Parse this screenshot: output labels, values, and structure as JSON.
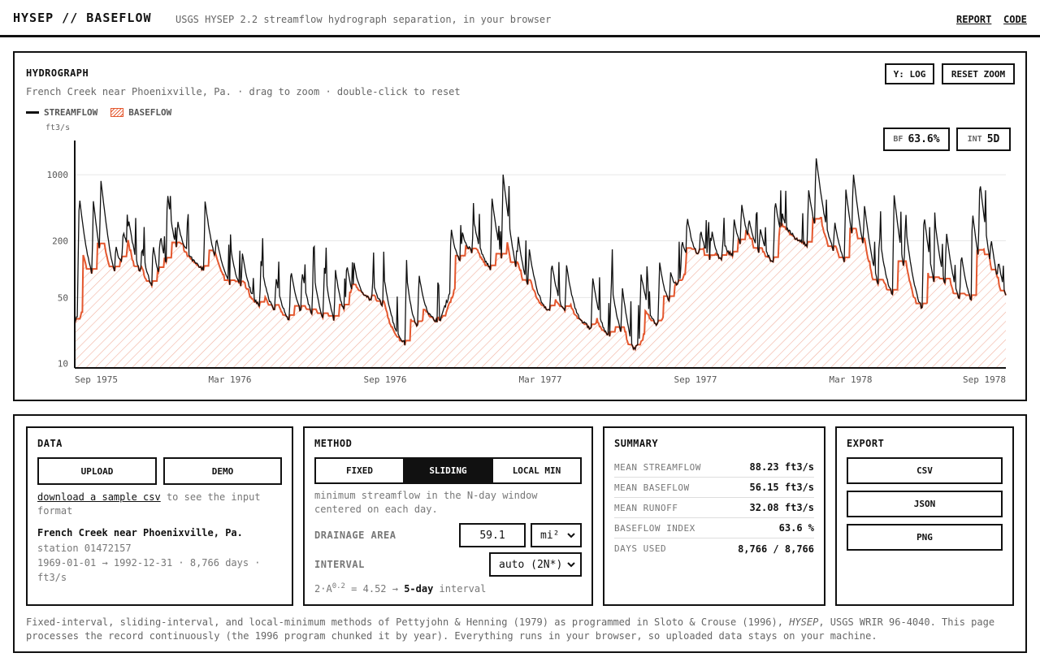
{
  "header": {
    "brand": "HYSEP // BASEFLOW",
    "tagline": "USGS HYSEP 2.2 streamflow hydrograph separation, in your browser",
    "nav": {
      "report": "REPORT",
      "code": "CODE"
    }
  },
  "chart_panel": {
    "title": "HYDROGRAPH",
    "subtitle": "French Creek near Phoenixville, Pa. · drag to zoom · double-click to reset",
    "ylog_button": "Y: LOG",
    "reset_button": "RESET ZOOM",
    "stat_bf": {
      "label": "BF",
      "value": "63.6%"
    },
    "stat_int": {
      "label": "INT",
      "value": "5D"
    }
  },
  "chart_data": {
    "type": "line",
    "series": [
      {
        "name": "STREAMFLOW",
        "color": "#111111"
      },
      {
        "name": "BASEFLOW",
        "color": "#e4572e",
        "fill": "hatched"
      }
    ],
    "ylabel": "ft3/s",
    "yscale": "log",
    "ylim": [
      9,
      2300
    ],
    "yticks": [
      10,
      50,
      200,
      1000
    ],
    "xticks": [
      "Sep 1975",
      "Mar 1976",
      "Sep 1976",
      "Mar 1977",
      "Sep 1977",
      "Mar 1978",
      "Sep 1978"
    ],
    "xrange": [
      "1975-09-01",
      "1978-09-01"
    ],
    "streamflow_anchors": [
      [
        0,
        28
      ],
      [
        0.02,
        60
      ],
      [
        0.03,
        40
      ],
      [
        0.05,
        50
      ],
      [
        0.07,
        120
      ],
      [
        0.09,
        70
      ],
      [
        0.11,
        50
      ],
      [
        0.13,
        80
      ],
      [
        0.15,
        130
      ],
      [
        0.17,
        100
      ],
      [
        0.19,
        85
      ],
      [
        0.21,
        62
      ],
      [
        0.23,
        48
      ],
      [
        0.25,
        38
      ],
      [
        0.27,
        32
      ],
      [
        0.29,
        26
      ],
      [
        0.31,
        29
      ],
      [
        0.33,
        22
      ],
      [
        0.35,
        19
      ],
      [
        0.37,
        32
      ],
      [
        0.39,
        48
      ],
      [
        0.41,
        41
      ],
      [
        0.43,
        20
      ],
      [
        0.45,
        14
      ],
      [
        0.47,
        26
      ],
      [
        0.49,
        28
      ],
      [
        0.51,
        78
      ],
      [
        0.53,
        140
      ],
      [
        0.55,
        110
      ],
      [
        0.57,
        80
      ],
      [
        0.59,
        55
      ],
      [
        0.61,
        46
      ],
      [
        0.63,
        37
      ],
      [
        0.65,
        33
      ],
      [
        0.67,
        28
      ],
      [
        0.69,
        24
      ],
      [
        0.71,
        19
      ],
      [
        0.73,
        16
      ],
      [
        0.74,
        12
      ],
      [
        0.75,
        10
      ],
      [
        0.765,
        26
      ],
      [
        0.78,
        24
      ],
      [
        0.8,
        38
      ],
      [
        0.82,
        100
      ],
      [
        0.84,
        130
      ],
      [
        0.86,
        95
      ],
      [
        0.88,
        125
      ],
      [
        0.9,
        140
      ],
      [
        0.92,
        130
      ],
      [
        0.94,
        105
      ],
      [
        0.96,
        210
      ],
      [
        0.98,
        185
      ],
      [
        1.0,
        165
      ],
      [
        1.02,
        130
      ],
      [
        1.04,
        85
      ],
      [
        1.06,
        72
      ],
      [
        1.08,
        50
      ],
      [
        1.1,
        44
      ],
      [
        1.12,
        38
      ],
      [
        1.14,
        32
      ],
      [
        1.16,
        40
      ],
      [
        1.18,
        38
      ],
      [
        1.2,
        35
      ],
      [
        1.22,
        36
      ],
      [
        1.25,
        38
      ]
    ],
    "storm_peaks": [
      [
        0.006,
        600
      ],
      [
        0.025,
        500
      ],
      [
        0.035,
        800
      ],
      [
        0.055,
        150
      ],
      [
        0.065,
        240
      ],
      [
        0.072,
        300
      ],
      [
        0.09,
        160
      ],
      [
        0.105,
        180
      ],
      [
        0.115,
        210
      ],
      [
        0.125,
        560
      ],
      [
        0.138,
        280
      ],
      [
        0.15,
        120
      ],
      [
        0.175,
        520
      ],
      [
        0.19,
        190
      ],
      [
        0.21,
        150
      ],
      [
        0.225,
        140
      ],
      [
        0.25,
        120
      ],
      [
        0.27,
        80
      ],
      [
        0.29,
        100
      ],
      [
        0.305,
        90
      ],
      [
        0.32,
        95
      ],
      [
        0.335,
        100
      ],
      [
        0.35,
        90
      ],
      [
        0.365,
        110
      ],
      [
        0.375,
        100
      ],
      [
        0.4,
        70
      ],
      [
        0.415,
        80
      ],
      [
        0.445,
        90
      ],
      [
        0.462,
        85
      ],
      [
        0.505,
        280
      ],
      [
        0.52,
        240
      ],
      [
        0.535,
        340
      ],
      [
        0.56,
        570
      ],
      [
        0.575,
        960
      ],
      [
        0.595,
        200
      ],
      [
        0.61,
        150
      ],
      [
        0.64,
        120
      ],
      [
        0.66,
        110
      ],
      [
        0.695,
        85
      ],
      [
        0.72,
        75
      ],
      [
        0.735,
        60
      ],
      [
        0.76,
        90
      ],
      [
        0.785,
        120
      ],
      [
        0.8,
        85
      ],
      [
        0.815,
        200
      ],
      [
        0.822,
        330
      ],
      [
        0.84,
        250
      ],
      [
        0.855,
        260
      ],
      [
        0.87,
        200
      ],
      [
        0.885,
        330
      ],
      [
        0.895,
        460
      ],
      [
        0.905,
        280
      ],
      [
        0.92,
        260
      ],
      [
        0.94,
        550
      ],
      [
        0.95,
        300
      ],
      [
        0.965,
        150
      ],
      [
        0.985,
        700
      ],
      [
        0.995,
        1500
      ],
      [
        1.02,
        300
      ],
      [
        1.035,
        700
      ],
      [
        1.045,
        950
      ],
      [
        1.06,
        400
      ],
      [
        1.08,
        220
      ],
      [
        1.1,
        600
      ],
      [
        1.115,
        250
      ],
      [
        1.14,
        380
      ],
      [
        1.155,
        280
      ],
      [
        1.17,
        230
      ],
      [
        1.19,
        140
      ],
      [
        1.205,
        400
      ],
      [
        1.215,
        800
      ],
      [
        1.23,
        150
      ],
      [
        1.24,
        90
      ]
    ]
  },
  "data_card": {
    "title": "DATA",
    "upload": "UPLOAD",
    "demo": "DEMO",
    "sample_link": "download a sample csv",
    "sample_rest": "to see the input format",
    "site_name": "French Creek near Phoenixville, Pa.",
    "station": "station 01472157",
    "range": "1969-01-01 → 1992-12-31 · 8,766 days · ft3/s"
  },
  "method_card": {
    "title": "METHOD",
    "options": [
      "FIXED",
      "SLIDING",
      "LOCAL MIN"
    ],
    "active": "SLIDING",
    "description": "minimum streamflow in the N-day window centered on each day.",
    "area_label": "DRAINAGE AREA",
    "area_value": "59.1",
    "area_unit": "mi²",
    "interval_label": "INTERVAL",
    "interval_value": "auto (2N*)",
    "formula_base": "2·A",
    "formula_exp": "0.2",
    "formula_mid": " = 4.52 → ",
    "formula_bold": "5-day",
    "formula_tail": " interval"
  },
  "summary_card": {
    "title": "SUMMARY",
    "rows": [
      {
        "label": "MEAN STREAMFLOW",
        "value": "88.23 ft3/s"
      },
      {
        "label": "MEAN BASEFLOW",
        "value": "56.15 ft3/s"
      },
      {
        "label": "MEAN RUNOFF",
        "value": "32.08 ft3/s"
      },
      {
        "label": "BASEFLOW INDEX",
        "value": "63.6 %"
      },
      {
        "label": "DAYS USED",
        "value": "8,766 / 8,766"
      }
    ]
  },
  "export_card": {
    "title": "EXPORT",
    "buttons": [
      "CSV",
      "JSON",
      "PNG"
    ]
  },
  "footnote": {
    "part1": "Fixed-interval, sliding-interval, and local-minimum methods of Pettyjohn & Henning (1979) as programmed in Sloto & Crouse (1996), ",
    "italic": "HYSEP",
    "part2": ", USGS WRIR 96-4040. This page processes the record continuously (the 1996 program chunked it by year). Everything runs in your browser, so uploaded data stays on your machine."
  }
}
